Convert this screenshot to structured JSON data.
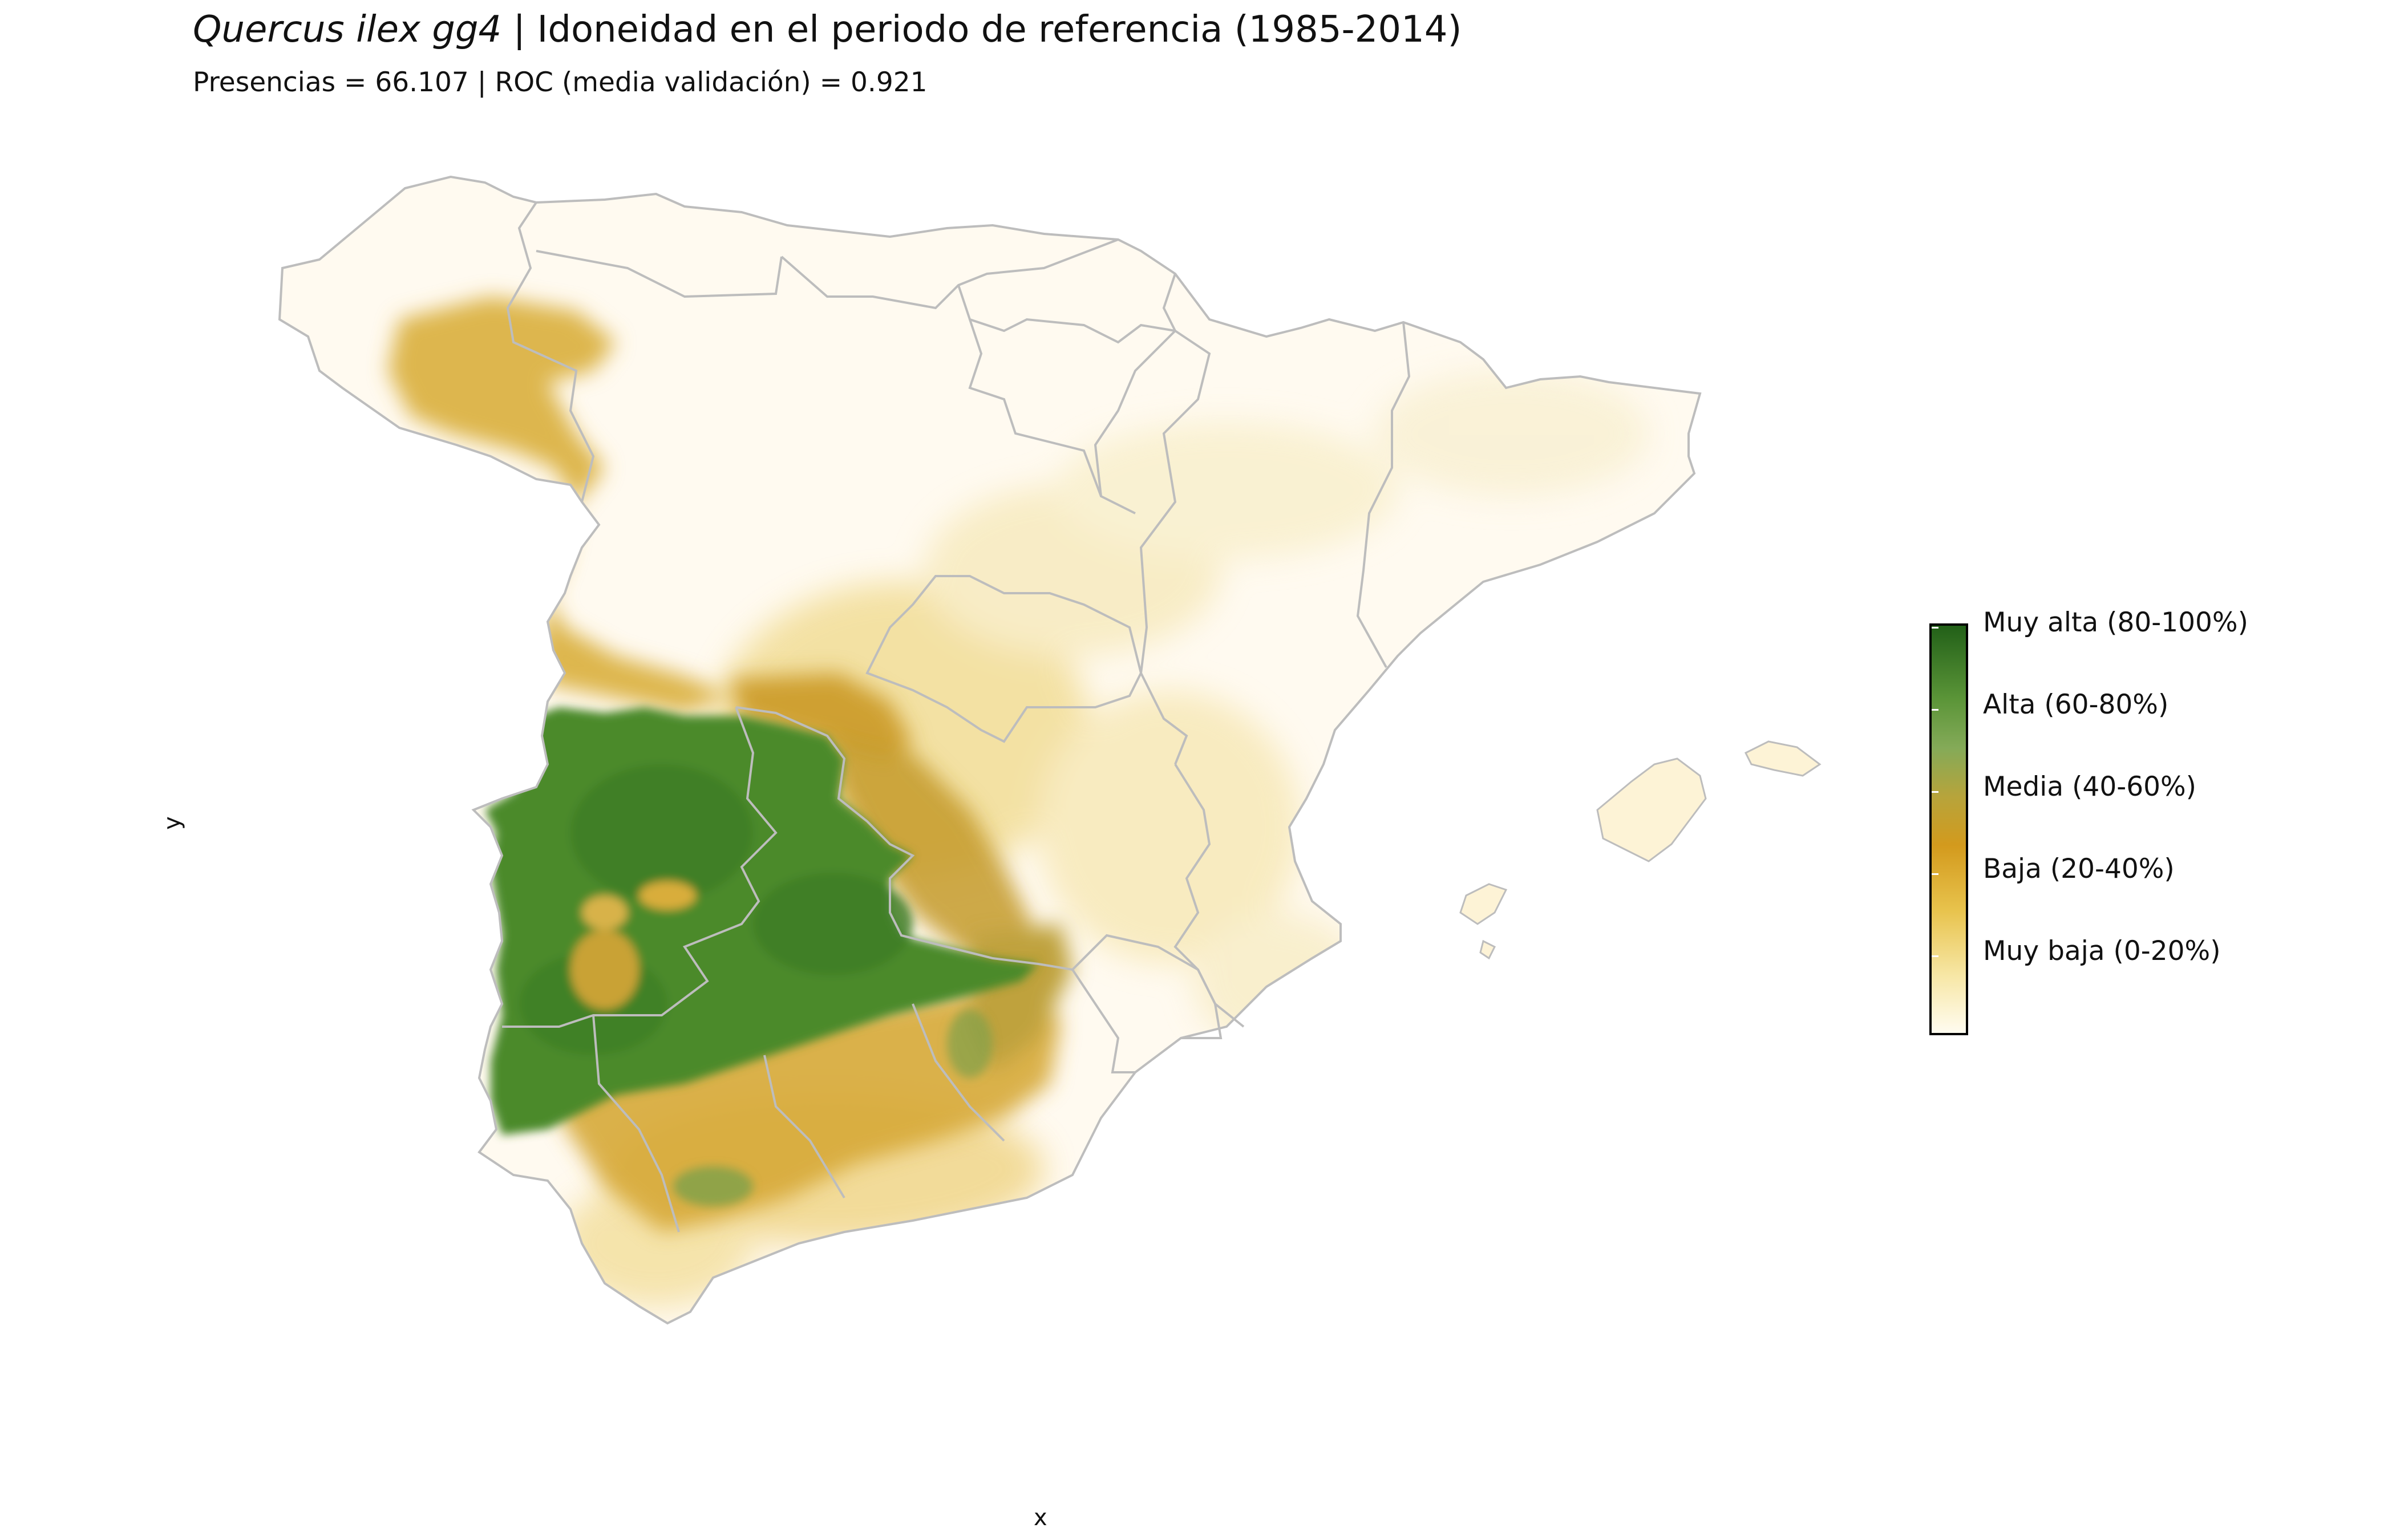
{
  "title": {
    "species": "Quercus ilex gg4",
    "separator": " | ",
    "rest": "Idoneidad en el periodo de referencia (1985-2014)"
  },
  "subtitle": "Presencias = 66.107  |  ROC (media validación) = 0.921",
  "axes": {
    "x_label": "x",
    "y_label": "y"
  },
  "legend": {
    "items": [
      {
        "label": "Muy alta (80-100%)",
        "color": "#226018"
      },
      {
        "label": "Alta (60-80%)",
        "color": "#6aa04b"
      },
      {
        "label": "Media (40-60%)",
        "color": "#b5a43c"
      },
      {
        "label": "Baja (20-40%)",
        "color": "#d39a1d"
      },
      {
        "label": "Muy baja (0-20%)",
        "color": "#f2dd8a"
      }
    ]
  },
  "colors": {
    "background_land": "#fffaf0",
    "border": "#bdbdbd",
    "very_high": "#226018",
    "high": "#4f8a2d",
    "medium": "#b9a53f",
    "low": "#d4a628",
    "very_low": "#f3e2a0"
  }
}
